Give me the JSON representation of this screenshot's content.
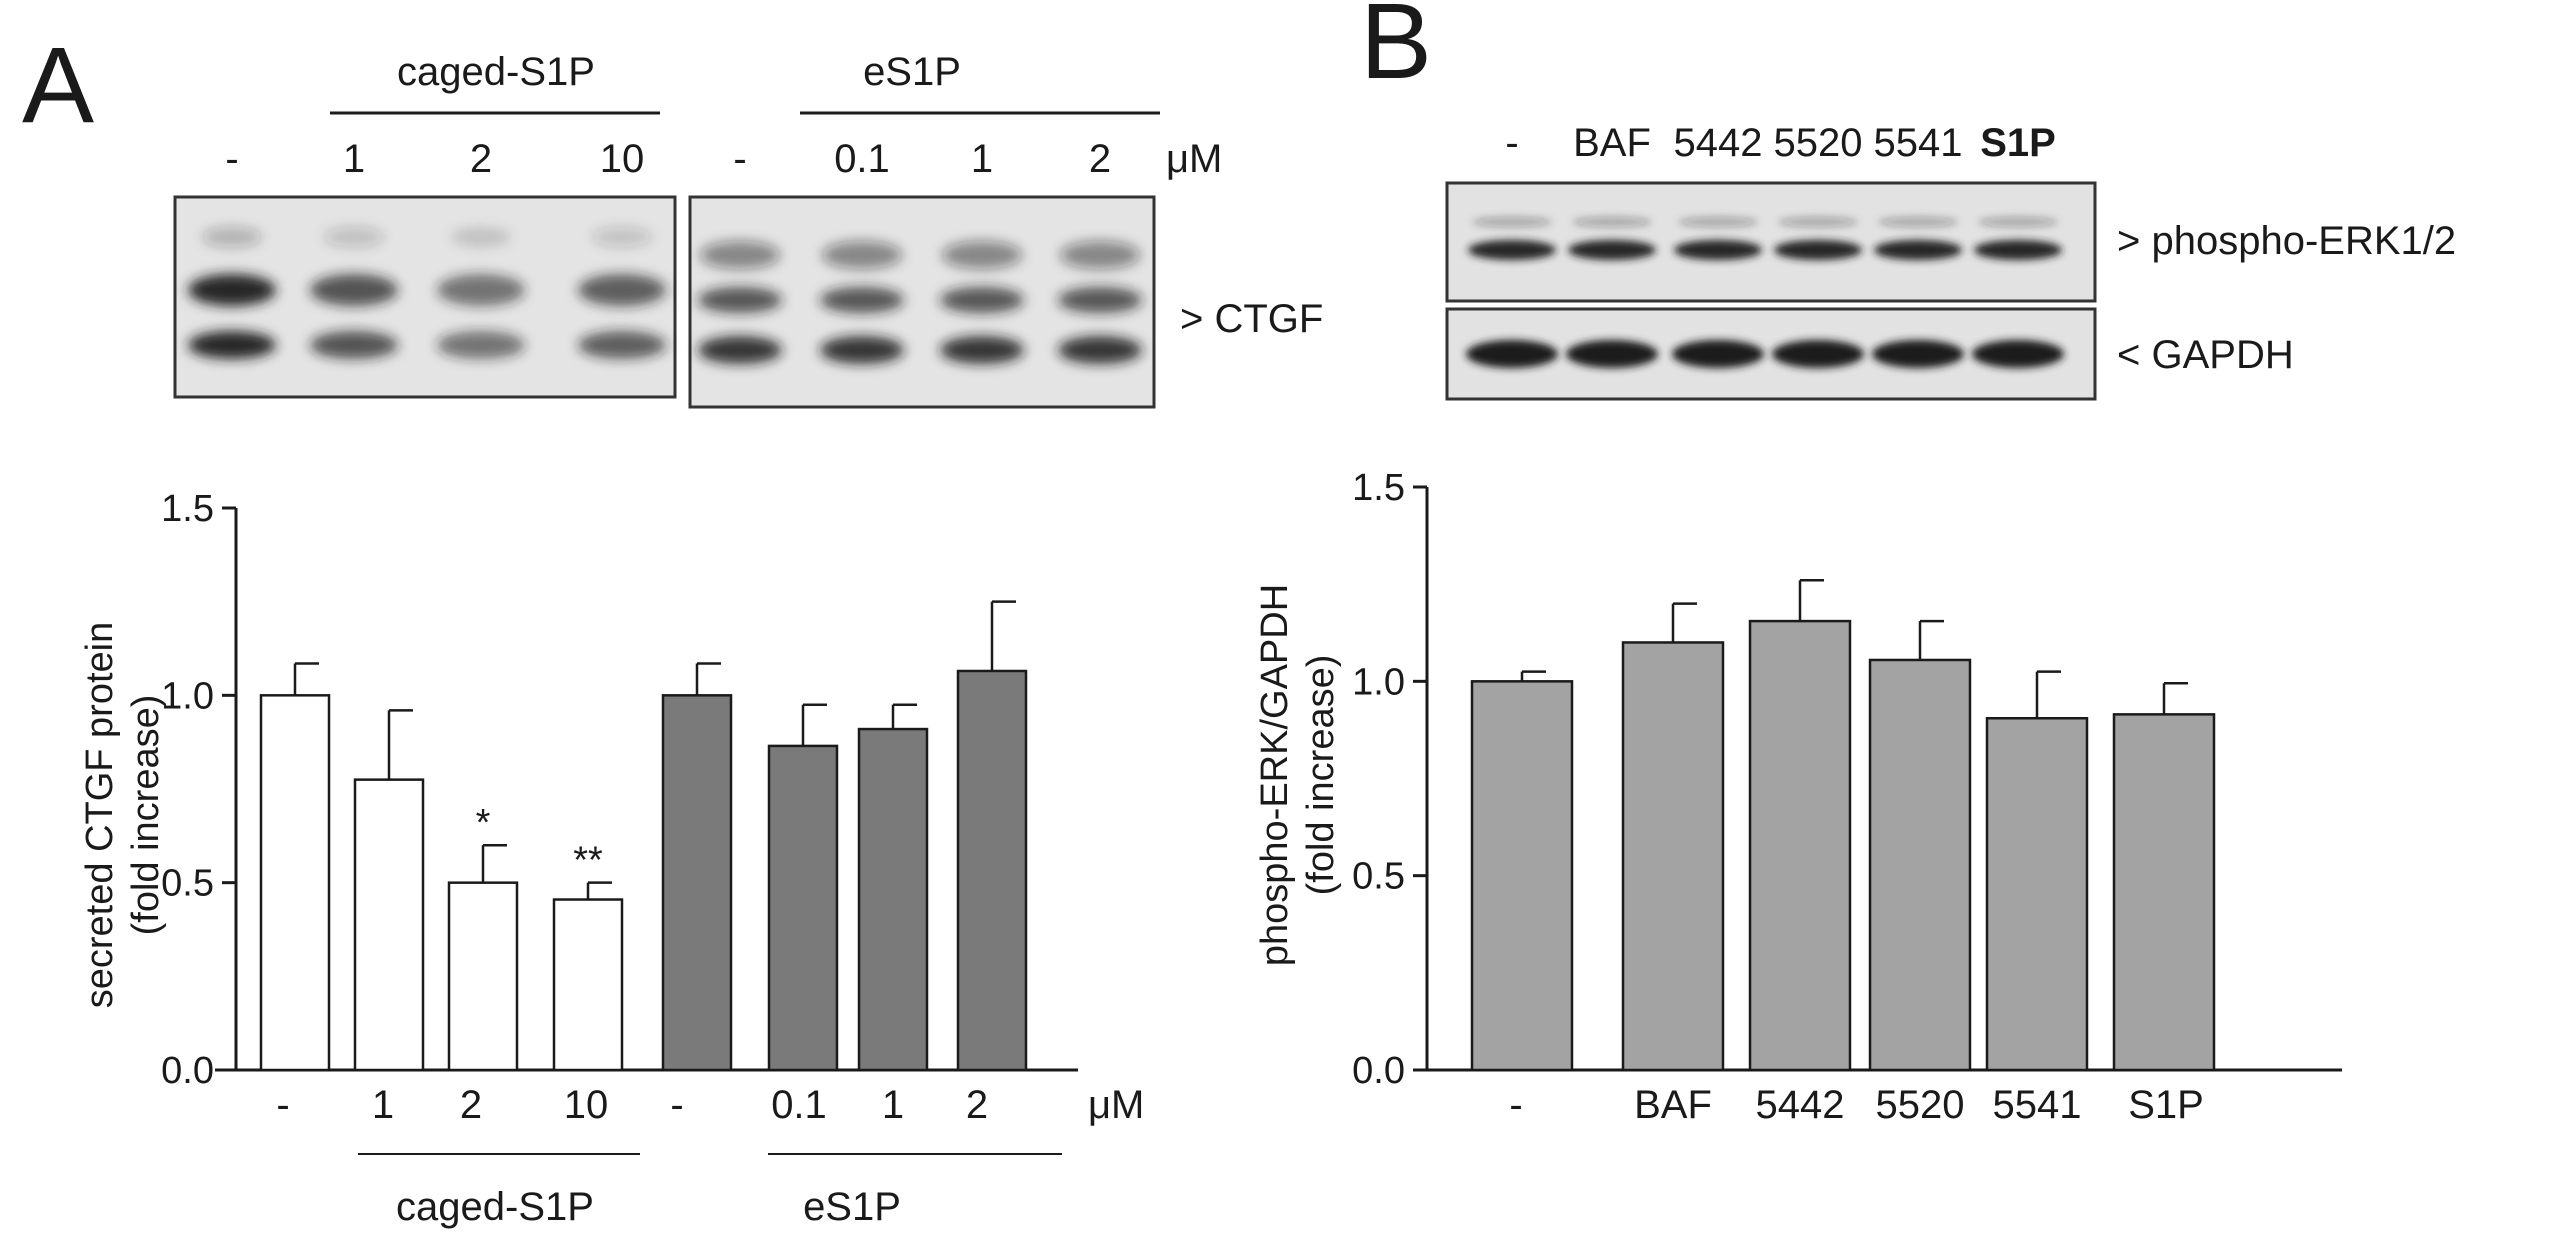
{
  "panel_a": {
    "letter": "A",
    "blot": {
      "group_caged": "caged-S1P",
      "group_es1p": "eS1P",
      "lanes": [
        "-",
        "1",
        "2",
        "10",
        "-",
        "0.1",
        "1",
        "2"
      ],
      "unit": "μM",
      "band_label": "> CTGF"
    },
    "bottom_labels": {
      "caged": "caged-S1P",
      "es1p": "eS1P"
    },
    "unit": "μM"
  },
  "panel_b": {
    "letter": "B",
    "blot": {
      "lanes": [
        "-",
        "BAF",
        "5442",
        "5520",
        "5541",
        "S1P"
      ],
      "band_label_1": "> phospho-ERK1/2",
      "band_label_2": "< GAPDH"
    }
  },
  "chart_data": [
    {
      "type": "bar",
      "panel": "A",
      "categories": [
        "-",
        "1",
        "2",
        "10",
        "-",
        "0.1",
        "1",
        "2"
      ],
      "values": [
        1.0,
        0.775,
        0.5,
        0.455,
        1.0,
        0.865,
        0.91,
        1.065
      ],
      "errors": [
        0.085,
        0.185,
        0.1,
        0.045,
        0.085,
        0.11,
        0.065,
        0.185
      ],
      "significance": [
        "",
        "",
        "*",
        "**",
        "",
        "",
        "",
        ""
      ],
      "bar_colors": [
        "#ffffff",
        "#ffffff",
        "#ffffff",
        "#ffffff",
        "#7a7a7a",
        "#7a7a7a",
        "#7a7a7a",
        "#7a7a7a"
      ],
      "ylabel_line1": "secreted CTGF protein",
      "ylabel_line2": "(fold increase)",
      "ylim": [
        0,
        1.5
      ],
      "yticks": [
        "0.0",
        "0.5",
        "1.0",
        "1.5"
      ],
      "unit": "μM",
      "groups": [
        "caged-S1P",
        "eS1P"
      ]
    },
    {
      "type": "bar",
      "panel": "B",
      "categories": [
        "-",
        "BAF",
        "5442",
        "5520",
        "5541",
        "S1P"
      ],
      "values": [
        1.0,
        1.1,
        1.155,
        1.055,
        0.905,
        0.915
      ],
      "errors": [
        0.025,
        0.1,
        0.105,
        0.1,
        0.12,
        0.08
      ],
      "bar_colors": [
        "#a3a3a3",
        "#a3a3a3",
        "#a3a3a3",
        "#a3a3a3",
        "#a3a3a3",
        "#a3a3a3"
      ],
      "ylabel_line1": "phospho-ERK/GAPDH",
      "ylabel_line2": "(fold increase)",
      "ylim": [
        0,
        1.5
      ],
      "yticks": [
        "0.0",
        "0.5",
        "1.0",
        "1.5"
      ]
    }
  ]
}
